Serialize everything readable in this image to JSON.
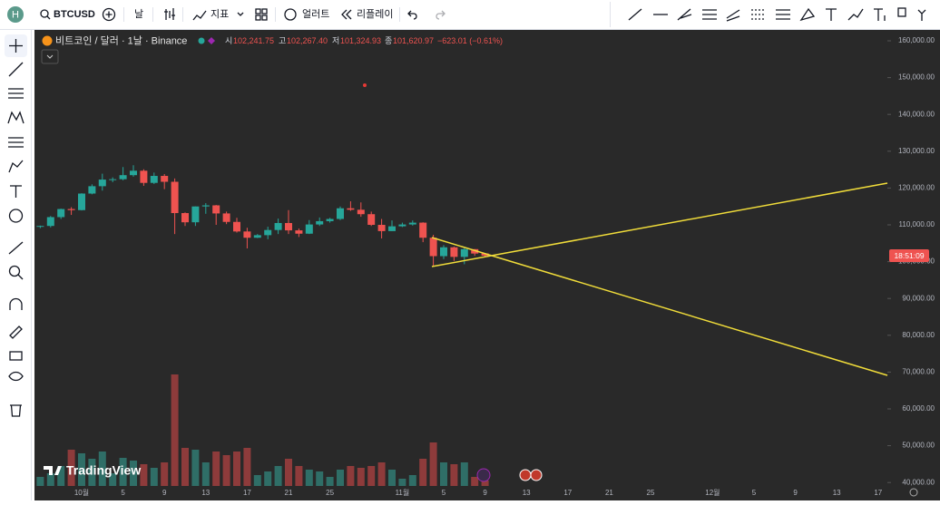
{
  "toolbar": {
    "avatar": "H",
    "symbol": "BTCUSD",
    "interval": "날",
    "indicators": "지표",
    "alerts": "얼러트",
    "replay": "리플레이"
  },
  "legend": {
    "title": "비트코인 / 달러 · 1날 · Binance",
    "open_label": "시",
    "open": "102,241.75",
    "high_label": "고",
    "high": "102,267.40",
    "low_label": "저",
    "low": "101,324.93",
    "close_label": "종",
    "close": "101,620.97",
    "change": "−623.01 (−0.61%)"
  },
  "logo": "TradingView",
  "countdown": "18:51:09",
  "chart_data": {
    "type": "candlestick",
    "categories": [
      null,
      null,
      null,
      null,
      "10월",
      null,
      null,
      null,
      "5",
      null,
      null,
      null,
      "9",
      null,
      null,
      null,
      "13",
      null,
      null,
      null,
      "17",
      null,
      null,
      null,
      "21",
      null,
      null,
      null,
      "25",
      null,
      null,
      null,
      null,
      null,
      null,
      "11월",
      null,
      null,
      null,
      "5",
      null,
      null,
      null,
      "9",
      null,
      null,
      null,
      "13",
      null,
      null,
      null,
      "17",
      null,
      null,
      null,
      "21",
      null,
      null,
      null,
      "25",
      null,
      null,
      null,
      null,
      null,
      "12월",
      null,
      null,
      null,
      "5",
      null,
      null,
      null,
      "9",
      null,
      null,
      null,
      "13",
      null,
      null,
      null,
      "17",
      null
    ],
    "open": [
      109600,
      109700,
      112100,
      114300,
      114000,
      118500,
      120500,
      122300,
      122400,
      123500,
      124700,
      121400,
      123300,
      121700,
      113200,
      110700,
      115000,
      115300,
      113100,
      110800,
      108200,
      106500,
      107200,
      108600,
      110500,
      108500,
      107600,
      110100,
      111000,
      111600,
      114500,
      114100,
      112900,
      110000,
      108300,
      109600,
      110100,
      110600,
      106500,
      101500,
      103900,
      101300,
      103400,
      102241.75,
      null,
      null,
      null,
      null,
      null,
      null,
      null,
      null,
      null,
      null,
      null,
      null,
      null,
      null,
      null,
      null,
      null,
      null,
      null,
      null,
      null,
      null,
      null,
      null,
      null,
      null,
      null,
      null,
      null,
      null,
      null,
      null,
      null,
      null,
      null,
      null,
      null,
      null,
      null
    ],
    "high": [
      109800,
      112400,
      114400,
      114800,
      118600,
      121000,
      123900,
      122900,
      125700,
      126200,
      125100,
      124200,
      123800,
      122600,
      113400,
      115000,
      115900,
      115400,
      113600,
      111900,
      109200,
      107500,
      109500,
      111700,
      114000,
      109000,
      111300,
      112000,
      111900,
      115000,
      116400,
      116100,
      113600,
      111600,
      111200,
      110600,
      111200,
      110700,
      107300,
      104500,
      104100,
      104000,
      103400,
      102267.4,
      null,
      null,
      null,
      null,
      null,
      null,
      null,
      null,
      null,
      null,
      null,
      null,
      null,
      null,
      null,
      null,
      null,
      null,
      null,
      null,
      null,
      null,
      null,
      null,
      null,
      null,
      null,
      null,
      null,
      null,
      null,
      null,
      null,
      null,
      null,
      null,
      null,
      null,
      null
    ],
    "low": [
      109100,
      109300,
      111600,
      112700,
      113900,
      118300,
      119300,
      121600,
      122100,
      123100,
      120600,
      121100,
      119700,
      107500,
      109700,
      109700,
      113000,
      110000,
      110200,
      107900,
      103600,
      106400,
      106100,
      107500,
      107500,
      106700,
      107500,
      109700,
      110600,
      111300,
      113800,
      112200,
      109700,
      106300,
      108300,
      109400,
      109800,
      105300,
      98900,
      100700,
      100200,
      99300,
      101600,
      101324.93,
      null,
      null,
      null,
      null,
      null,
      null,
      null,
      null,
      null,
      null,
      null,
      null,
      null,
      null,
      null,
      null,
      null,
      null,
      null,
      null,
      null,
      null,
      null,
      null,
      null,
      null,
      null,
      null,
      null,
      null,
      null,
      null,
      null,
      null,
      null,
      null,
      null,
      null,
      null
    ],
    "close": [
      109700,
      112100,
      114300,
      114000,
      118500,
      120500,
      122300,
      122400,
      123500,
      124700,
      121400,
      123300,
      121700,
      113200,
      110700,
      115000,
      115300,
      113100,
      110800,
      108200,
      106500,
      107200,
      108600,
      110500,
      108500,
      107600,
      110100,
      111000,
      111600,
      114500,
      114100,
      112900,
      110000,
      108300,
      109600,
      110100,
      110600,
      106500,
      101500,
      103900,
      101300,
      103400,
      102200,
      101620.97,
      null,
      null,
      null,
      null,
      null,
      null,
      null,
      null,
      null,
      null,
      null,
      null,
      null,
      null,
      null,
      null,
      null,
      null,
      null,
      null,
      null,
      null,
      null,
      null,
      null,
      null,
      null,
      null,
      null,
      null,
      null,
      null,
      null,
      null,
      null,
      null,
      null,
      null,
      null
    ],
    "volume": [
      10,
      14,
      22,
      40,
      36,
      30,
      38,
      14,
      31,
      28,
      24,
      20,
      26,
      123,
      42,
      40,
      26,
      38,
      34,
      38,
      42,
      12,
      16,
      22,
      30,
      22,
      18,
      16,
      10,
      18,
      22,
      20,
      22,
      26,
      18,
      8,
      12,
      30,
      48,
      26,
      24,
      26,
      10,
      6,
      null,
      null,
      null,
      null,
      null,
      null,
      null,
      null,
      null,
      null,
      null,
      null,
      null,
      null,
      null,
      null,
      null,
      null,
      null,
      null,
      null,
      null,
      null,
      null,
      null,
      null,
      null,
      null,
      null,
      null,
      null,
      null,
      null,
      null,
      null,
      null,
      null,
      null,
      null
    ],
    "up_color": "#26a69a",
    "down_color": "#ef5350",
    "up_volume_color": "#2f6e67",
    "down_volume_color": "#8e3b3b",
    "ylim": [
      39060,
      162960
    ],
    "yticks": [
      {
        "value": 40000,
        "label": "40,000.00"
      },
      {
        "value": 50000,
        "label": "50,000.00"
      },
      {
        "value": 60000,
        "label": "60,000.00"
      },
      {
        "value": 70000,
        "label": "70,000.00"
      },
      {
        "value": 80000,
        "label": "80,000.00"
      },
      {
        "value": 90000,
        "label": "90,000.00"
      },
      {
        "value": 100000,
        "label": "100,000.00"
      },
      {
        "value": 110000,
        "label": "110,000.00"
      },
      {
        "value": 120000,
        "label": "120,000.00"
      },
      {
        "value": 130000,
        "label": "130,000.00"
      },
      {
        "value": 140000,
        "label": "140,000.00"
      },
      {
        "value": 150000,
        "label": "150,000.00"
      },
      {
        "value": 160000,
        "label": "160,000.00"
      }
    ]
  }
}
